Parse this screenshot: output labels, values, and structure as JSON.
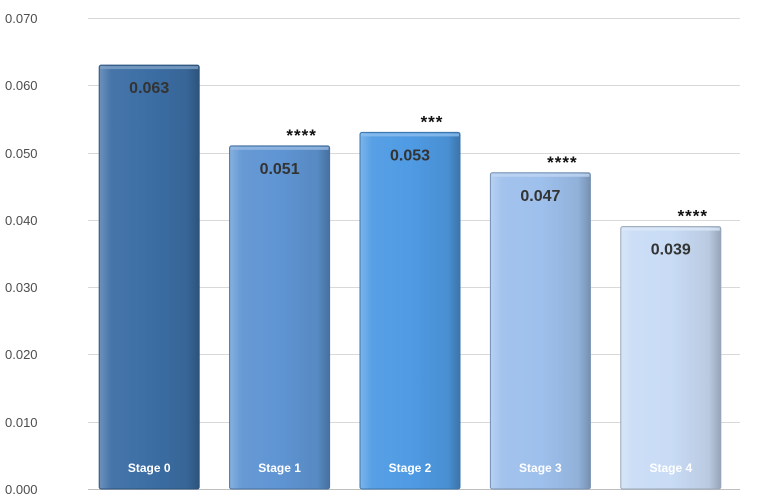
{
  "chart_data": {
    "type": "bar",
    "categories": [
      "Stage 0",
      "Stage 1",
      "Stage 2",
      "Stage 3",
      "Stage 4"
    ],
    "values": [
      0.063,
      0.051,
      0.053,
      0.047,
      0.039
    ],
    "value_labels": [
      "0.063",
      "0.051",
      "0.053",
      "0.047",
      "0.039"
    ],
    "significance": [
      "",
      "****",
      "***",
      "****",
      "****"
    ],
    "ylim": [
      0,
      0.07
    ],
    "yticks": [
      "0.000",
      "0.010",
      "0.020",
      "0.030",
      "0.040",
      "0.050",
      "0.060",
      "0.070"
    ],
    "ytick_values": [
      0,
      0.01,
      0.02,
      0.03,
      0.04,
      0.05,
      0.06,
      0.07
    ],
    "grid": true,
    "legend": false,
    "bar_colors": [
      "#3c6ea4",
      "#5f95d3",
      "#4f9be4",
      "#9ec0ec",
      "#c9dcf5"
    ]
  }
}
